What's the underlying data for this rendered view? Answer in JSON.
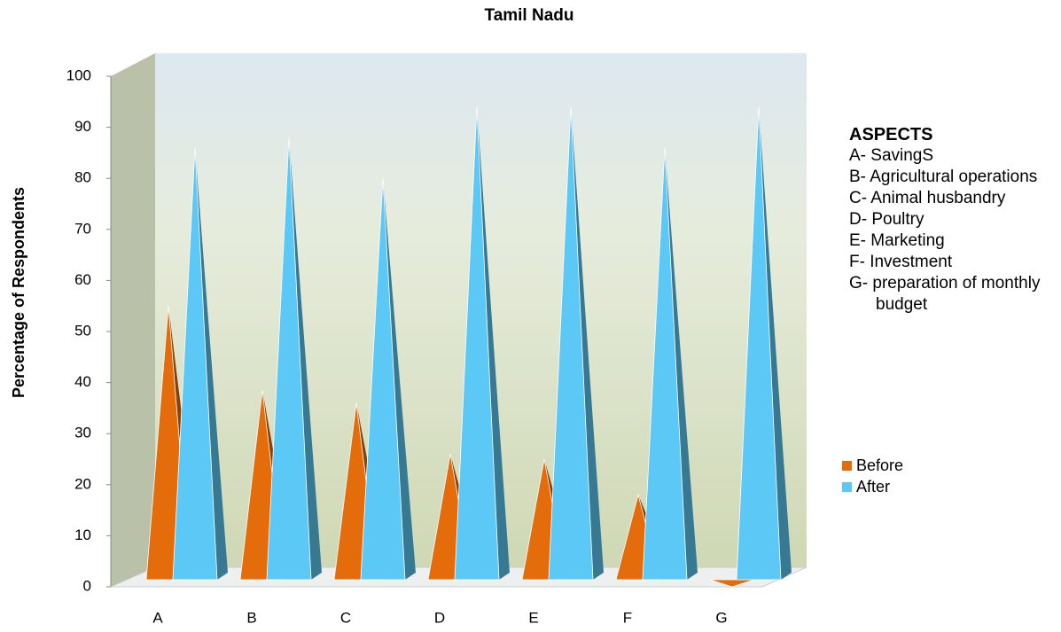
{
  "chart_data": {
    "type": "bar3d",
    "title": "Tamil Nadu",
    "y_label": "Percentage of Respondents",
    "categories": [
      "A",
      "B",
      "C",
      "D",
      "E",
      "F",
      "G"
    ],
    "series": [
      {
        "name": "Before",
        "color": "#e46c0a",
        "values": [
          55,
          38.5,
          36,
          26,
          25,
          18,
          0
        ]
      },
      {
        "name": "After",
        "color": "#5bc8f5",
        "values": [
          86,
          88,
          80,
          94,
          94,
          86,
          94
        ]
      }
    ],
    "ylim": [
      0,
      100
    ],
    "yticks": [
      0,
      10,
      20,
      30,
      40,
      50,
      60,
      70,
      80,
      90,
      100
    ],
    "aspects_title": "ASPECTS",
    "aspects": [
      "A- SavingS",
      "B-  Agricultural operations",
      "C- Animal husbandry",
      "D- Poultry",
      "E- Marketing",
      "F- Investment",
      "G- preparation of monthly  budget"
    ]
  }
}
